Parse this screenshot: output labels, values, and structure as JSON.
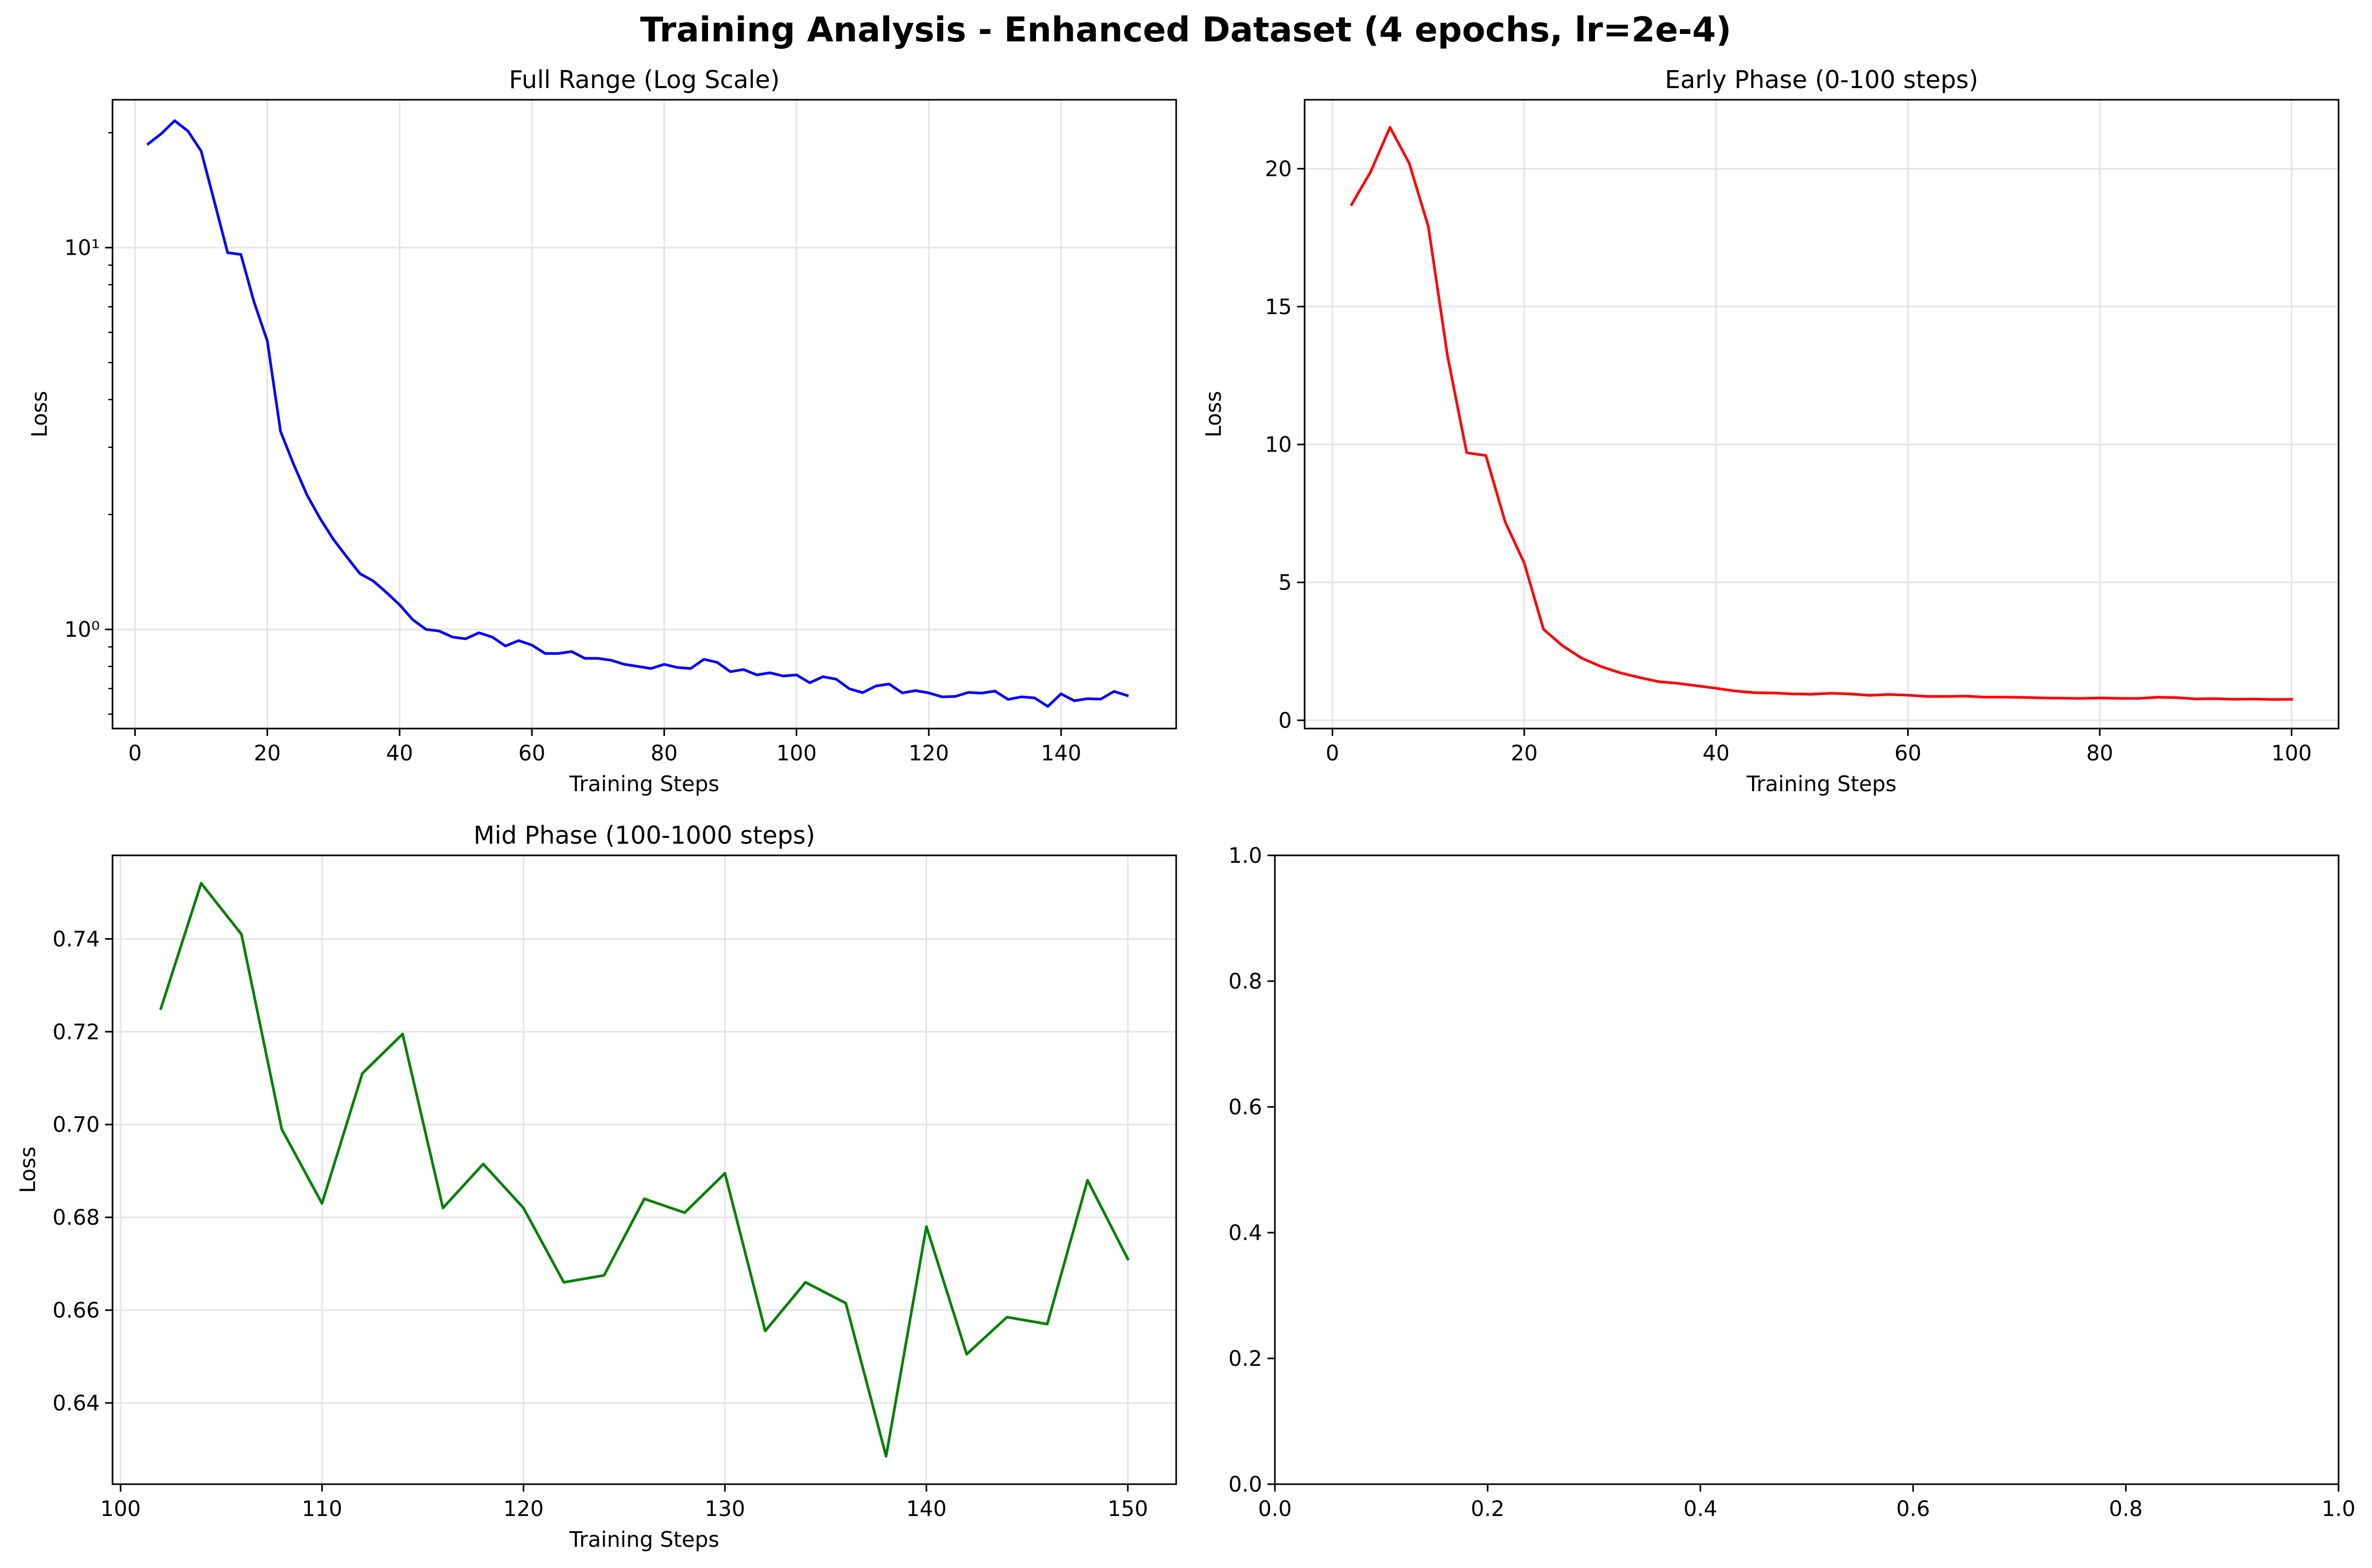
{
  "suptitle": "Training Analysis - Enhanced Dataset (4 epochs, lr=2e-4)",
  "chart_data": [
    {
      "type": "line",
      "title": "Full Range (Log Scale)",
      "xlabel": "Training Steps",
      "ylabel": "Loss",
      "yscale": "log",
      "xlim": [
        -3.4,
        157.4
      ],
      "ylim": [
        0.55,
        24.4
      ],
      "xticks": [
        0,
        20,
        40,
        60,
        80,
        100,
        120,
        140
      ],
      "xtick_labels": [
        "0",
        "20",
        "40",
        "60",
        "80",
        "100",
        "120",
        "140"
      ],
      "yticks": [
        1,
        10
      ],
      "ytick_labels": [
        "10⁰",
        "10¹"
      ],
      "grid": true,
      "color": "#0000ff",
      "series": [
        {
          "x": [
            2,
            4,
            6,
            8,
            10,
            12,
            14,
            16,
            18,
            20,
            22,
            24,
            26,
            28,
            30,
            32,
            34,
            36,
            38,
            40,
            42,
            44,
            46,
            48,
            50,
            52,
            54,
            56,
            58,
            60,
            62,
            64,
            66,
            68,
            70,
            72,
            74,
            76,
            78,
            80,
            82,
            84,
            86,
            88,
            90,
            92,
            94,
            96,
            98,
            100,
            102,
            104,
            106,
            108,
            110,
            112,
            114,
            116,
            118,
            120,
            122,
            124,
            126,
            128,
            130,
            132,
            134,
            136,
            138,
            140,
            142,
            144,
            146,
            148,
            150
          ],
          "y": [
            18.7,
            19.9,
            21.5,
            20.2,
            17.9,
            13.2,
            9.7,
            9.6,
            7.2,
            5.7,
            3.3,
            2.7,
            2.25,
            1.95,
            1.72,
            1.55,
            1.4,
            1.34,
            1.25,
            1.16,
            1.06,
            1.0,
            0.99,
            0.955,
            0.945,
            0.98,
            0.955,
            0.905,
            0.935,
            0.91,
            0.865,
            0.865,
            0.875,
            0.84,
            0.84,
            0.83,
            0.81,
            0.8,
            0.79,
            0.81,
            0.795,
            0.79,
            0.835,
            0.82,
            0.775,
            0.785,
            0.76,
            0.77,
            0.755,
            0.76,
            0.725,
            0.752,
            0.741,
            0.699,
            0.683,
            0.711,
            0.7195,
            0.682,
            0.6915,
            0.682,
            0.666,
            0.6675,
            0.684,
            0.681,
            0.6895,
            0.6555,
            0.666,
            0.6615,
            0.6285,
            0.678,
            0.6505,
            0.6585,
            0.657,
            0.688,
            0.671
          ]
        }
      ]
    },
    {
      "type": "line",
      "title": "Early Phase (0-100 steps)",
      "xlabel": "Training Steps",
      "ylabel": "Loss",
      "xlim": [
        -2.9,
        104.9
      ],
      "ylim": [
        -0.3,
        22.5
      ],
      "xticks": [
        0,
        20,
        40,
        60,
        80,
        100
      ],
      "xtick_labels": [
        "0",
        "20",
        "40",
        "60",
        "80",
        "100"
      ],
      "yticks": [
        0,
        5,
        10,
        15,
        20
      ],
      "ytick_labels": [
        "0",
        "5",
        "10",
        "15",
        "20"
      ],
      "grid": true,
      "color": "#ff0000",
      "series": [
        {
          "x": [
            2,
            4,
            6,
            8,
            10,
            12,
            14,
            16,
            18,
            20,
            22,
            24,
            26,
            28,
            30,
            32,
            34,
            36,
            38,
            40,
            42,
            44,
            46,
            48,
            50,
            52,
            54,
            56,
            58,
            60,
            62,
            64,
            66,
            68,
            70,
            72,
            74,
            76,
            78,
            80,
            82,
            84,
            86,
            88,
            90,
            92,
            94,
            96,
            98,
            100
          ],
          "y": [
            18.7,
            19.9,
            21.5,
            20.2,
            17.9,
            13.2,
            9.7,
            9.6,
            7.2,
            5.7,
            3.3,
            2.7,
            2.25,
            1.95,
            1.72,
            1.55,
            1.4,
            1.34,
            1.25,
            1.16,
            1.06,
            1.0,
            0.99,
            0.955,
            0.945,
            0.98,
            0.955,
            0.905,
            0.935,
            0.91,
            0.865,
            0.865,
            0.875,
            0.84,
            0.84,
            0.83,
            0.81,
            0.8,
            0.79,
            0.81,
            0.795,
            0.79,
            0.835,
            0.82,
            0.775,
            0.785,
            0.76,
            0.77,
            0.755,
            0.76
          ]
        }
      ]
    },
    {
      "type": "line",
      "title": "Mid Phase (100-1000 steps)",
      "xlabel": "Training Steps",
      "ylabel": "Loss",
      "xlim": [
        99.6,
        152.4
      ],
      "ylim": [
        0.6225,
        0.758
      ],
      "xticks": [
        100,
        110,
        120,
        130,
        140,
        150
      ],
      "xtick_labels": [
        "100",
        "110",
        "120",
        "130",
        "140",
        "150"
      ],
      "yticks": [
        0.64,
        0.66,
        0.68,
        0.7,
        0.72,
        0.74
      ],
      "ytick_labels": [
        "0.64",
        "0.66",
        "0.68",
        "0.70",
        "0.72",
        "0.74"
      ],
      "grid": true,
      "color": "#008000",
      "series": [
        {
          "x": [
            102,
            104,
            106,
            108,
            110,
            112,
            114,
            116,
            118,
            120,
            122,
            124,
            126,
            128,
            130,
            132,
            134,
            136,
            138,
            140,
            142,
            144,
            146,
            148,
            150
          ],
          "y": [
            0.725,
            0.752,
            0.741,
            0.699,
            0.683,
            0.711,
            0.7195,
            0.682,
            0.6915,
            0.682,
            0.666,
            0.6675,
            0.684,
            0.681,
            0.6895,
            0.6555,
            0.666,
            0.6615,
            0.6285,
            0.678,
            0.6505,
            0.6585,
            0.657,
            0.688,
            0.671
          ]
        }
      ]
    },
    {
      "type": "line",
      "title": "",
      "xlabel": "",
      "ylabel": "",
      "xlim": [
        0,
        1
      ],
      "ylim": [
        0,
        1
      ],
      "xticks": [
        0,
        0.2,
        0.4,
        0.6,
        0.8,
        1.0
      ],
      "xtick_labels": [
        "0.0",
        "0.2",
        "0.4",
        "0.6",
        "0.8",
        "1.0"
      ],
      "yticks": [
        0,
        0.2,
        0.4,
        0.6,
        0.8,
        1.0
      ],
      "ytick_labels": [
        "0.0",
        "0.2",
        "0.4",
        "0.6",
        "0.8",
        "1.0"
      ],
      "grid": false,
      "color": "#000000",
      "series": []
    }
  ]
}
